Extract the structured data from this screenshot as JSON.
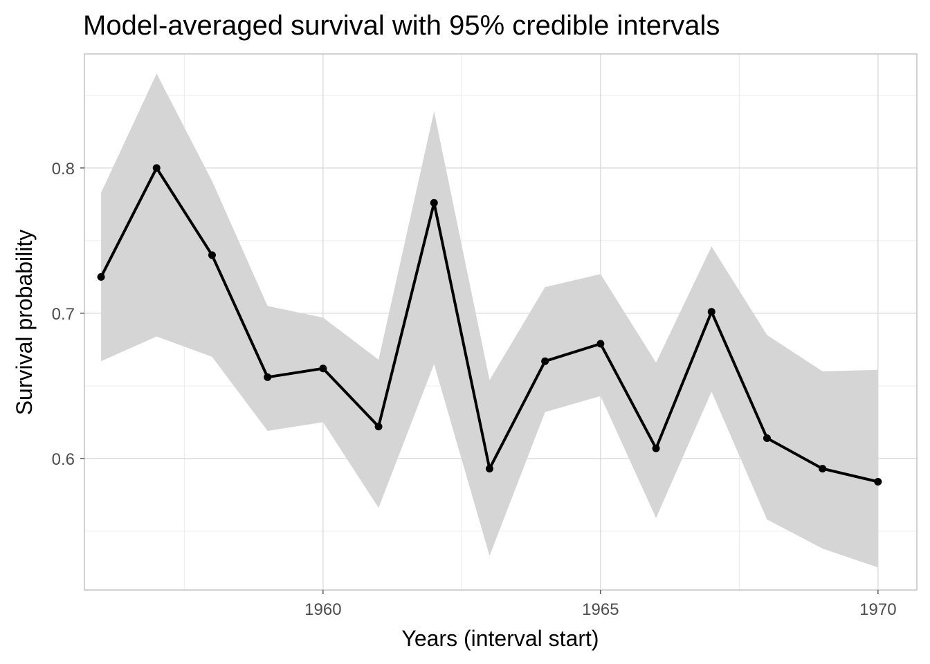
{
  "chart_data": {
    "type": "line",
    "title": "Model-averaged survival with 95% credible intervals",
    "xlabel": "Years (interval start)",
    "ylabel": "Survival probability",
    "x": [
      1956,
      1957,
      1958,
      1959,
      1960,
      1961,
      1962,
      1963,
      1964,
      1965,
      1966,
      1967,
      1968,
      1969,
      1970
    ],
    "series": [
      {
        "values": [
          0.725,
          0.8,
          0.74,
          0.656,
          0.662,
          0.622,
          0.776,
          0.593,
          0.667,
          0.679,
          0.607,
          0.701,
          0.614,
          0.593,
          0.584
        ],
        "lower": [
          0.667,
          0.684,
          0.67,
          0.619,
          0.625,
          0.566,
          0.665,
          0.533,
          0.632,
          0.643,
          0.559,
          0.646,
          0.558,
          0.538,
          0.525
        ],
        "upper": [
          0.783,
          0.865,
          0.791,
          0.705,
          0.697,
          0.668,
          0.839,
          0.654,
          0.718,
          0.727,
          0.666,
          0.746,
          0.685,
          0.66,
          0.661
        ]
      }
    ],
    "xlim": [
      1955.7,
      1970.7
    ],
    "ylim": [
      0.5095,
      0.8785
    ],
    "x_ticks": [
      1960,
      1965,
      1970
    ],
    "x_tick_labels": [
      "1960",
      "1965",
      "1970"
    ],
    "y_ticks": [
      0.6,
      0.7,
      0.8
    ],
    "y_tick_labels": [
      "0.6",
      "0.7",
      "0.8"
    ],
    "grid": true,
    "colors": {
      "line": "#000000",
      "ribbon": "#d5d5d5",
      "grid_major": "#d9d9d9",
      "grid_minor": "#ececec",
      "panel_border": "#b3b3b3"
    }
  }
}
